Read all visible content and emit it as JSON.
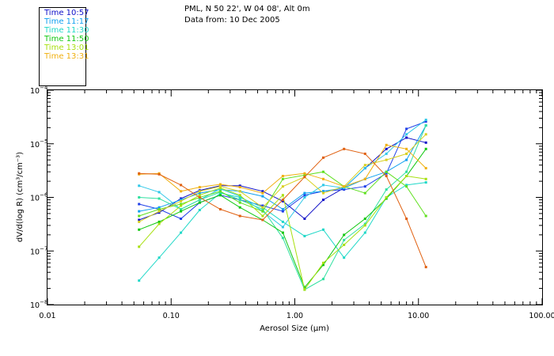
{
  "header": {
    "title": "PML, N 50 22', W 04 08', Alt 0m",
    "subtitle": "Data from: 10 Dec 2005"
  },
  "chart_data": {
    "type": "line",
    "xlabel": "Aerosol Size (µm)",
    "ylabel": "dV/d(log R) (cm³/cm⁻³)",
    "x_scale": "log",
    "y_scale": "log",
    "xlim": [
      0.01,
      100
    ],
    "ylim": [
      1e-08,
      0.0001
    ],
    "x_ticks": [
      {
        "value": 0.01,
        "label": "0.01"
      },
      {
        "value": 0.1,
        "label": "0.10"
      },
      {
        "value": 1,
        "label": "1.00"
      },
      {
        "value": 10,
        "label": "10.00"
      },
      {
        "value": 100,
        "label": "100.00"
      }
    ],
    "y_ticks": [
      {
        "exp": -8,
        "base": "10",
        "sup": "−8"
      },
      {
        "exp": -7,
        "base": "10",
        "sup": "−7"
      },
      {
        "exp": -6,
        "base": "10",
        "sup": "−6"
      },
      {
        "exp": -5,
        "base": "10",
        "sup": "−5"
      },
      {
        "exp": -4,
        "base": "10",
        "sup": "−4"
      }
    ],
    "x": [
      0.055,
      0.08,
      0.12,
      0.17,
      0.25,
      0.36,
      0.55,
      0.8,
      1.2,
      1.7,
      2.5,
      3.7,
      5.5,
      8.0,
      11.5
    ],
    "series": [
      {
        "name": "Time 10:57",
        "color": "#1010c8",
        "values": [
          3.8e-07,
          5.2e-07,
          9.5e-07,
          1.35e-06,
          1.65e-06,
          1.65e-06,
          1.3e-06,
          8.5e-07,
          4e-07,
          9e-07,
          1.5e-06,
          3.5e-06,
          8e-06,
          1.3e-05,
          1.05e-05
        ]
      },
      {
        "name": "",
        "color": "#2040e8",
        "values": [
          7.5e-07,
          6e-07,
          4e-07,
          8e-07,
          1.1e-06,
          9e-07,
          7e-07,
          5.5e-07,
          1.1e-06,
          1.3e-06,
          1.4e-06,
          1.6e-06,
          2.8e-06,
          1.9e-05,
          2.6e-05
        ]
      },
      {
        "name": "Time 11:17",
        "color": "#10a0f0",
        "values": [
          5.5e-07,
          6.5e-07,
          9e-07,
          1.2e-06,
          1.4e-06,
          1.3e-06,
          1.05e-06,
          6e-07,
          1.2e-06,
          1.3e-06,
          1.5e-06,
          2.2e-06,
          3e-06,
          5e-06,
          2.2e-05
        ]
      },
      {
        "name": "",
        "color": "#30c8e8",
        "values": [
          1.65e-06,
          1.25e-06,
          6e-07,
          9e-07,
          1.45e-06,
          1.05e-06,
          5.5e-07,
          2.8e-07,
          1e-06,
          1.7e-06,
          1.5e-06,
          3.5e-06,
          6.5e-06,
          1.5e-05,
          2.8e-05
        ]
      },
      {
        "name": "Time 11:30",
        "color": "#20d8c8",
        "values": [
          2.8e-08,
          7.5e-08,
          2.2e-07,
          5.8e-07,
          1.2e-06,
          1e-06,
          6.5e-07,
          3.5e-07,
          1.9e-07,
          2.5e-07,
          7.5e-08,
          2.2e-07,
          1e-06,
          1.7e-06,
          1.9e-06
        ]
      },
      {
        "name": "",
        "color": "#30e0a0",
        "values": [
          1e-06,
          9.5e-07,
          6e-07,
          9e-07,
          1.25e-06,
          9e-07,
          6e-07,
          1.75e-07,
          1.9e-08,
          3e-08,
          1.6e-07,
          3.2e-07,
          1.4e-06,
          3e-06,
          2.2e-05
        ]
      },
      {
        "name": "Time 11:50",
        "color": "#10c810",
        "values": [
          2.5e-07,
          3.5e-07,
          5.5e-07,
          8e-07,
          1.1e-06,
          6.5e-07,
          3.8e-07,
          2.2e-07,
          2.1e-08,
          5.5e-08,
          2e-07,
          4e-07,
          9.5e-07,
          2.5e-06,
          8e-06
        ]
      },
      {
        "name": "",
        "color": "#60e020",
        "values": [
          4.5e-07,
          6e-07,
          7.5e-07,
          1e-06,
          1.3e-06,
          8e-07,
          5.5e-07,
          2.2e-06,
          2.6e-06,
          3e-06,
          1.6e-06,
          1.2e-06,
          3e-06,
          1.6e-06,
          4.5e-07
        ]
      },
      {
        "name": "Time 13:01",
        "color": "#a8e010",
        "values": [
          1.2e-07,
          3.2e-07,
          7e-07,
          1.1e-06,
          1.5e-06,
          1.1e-06,
          4.5e-07,
          1.1e-06,
          1.9e-08,
          6e-08,
          1.3e-07,
          3e-07,
          1e-06,
          2.5e-06,
          2.2e-06
        ]
      },
      {
        "name": "",
        "color": "#d8d020",
        "values": [
          3.5e-07,
          5.5e-07,
          8.5e-07,
          1.3e-06,
          1.6e-06,
          1.3e-06,
          6.5e-07,
          1.6e-06,
          2.4e-06,
          1.2e-06,
          1.6e-06,
          4e-06,
          5e-06,
          6.5e-06,
          1.5e-05
        ]
      },
      {
        "name": "Time 13:31",
        "color": "#f0b010",
        "values": [
          2.7e-06,
          2.8e-06,
          1.3e-06,
          1.55e-06,
          1.75e-06,
          1.55e-06,
          1.2e-06,
          2.5e-06,
          2.8e-06,
          2.2e-06,
          1.6e-06,
          2.2e-06,
          9.5e-06,
          8e-06,
          3.5e-06
        ]
      },
      {
        "name": "",
        "color": "#e06010",
        "values": [
          2.8e-06,
          2.7e-06,
          1.7e-06,
          1e-06,
          6e-07,
          4.5e-07,
          3.8e-07,
          9e-07,
          2.4e-06,
          5.5e-06,
          8e-06,
          6.5e-06,
          2.5e-06,
          4e-07,
          5e-08
        ]
      }
    ]
  }
}
